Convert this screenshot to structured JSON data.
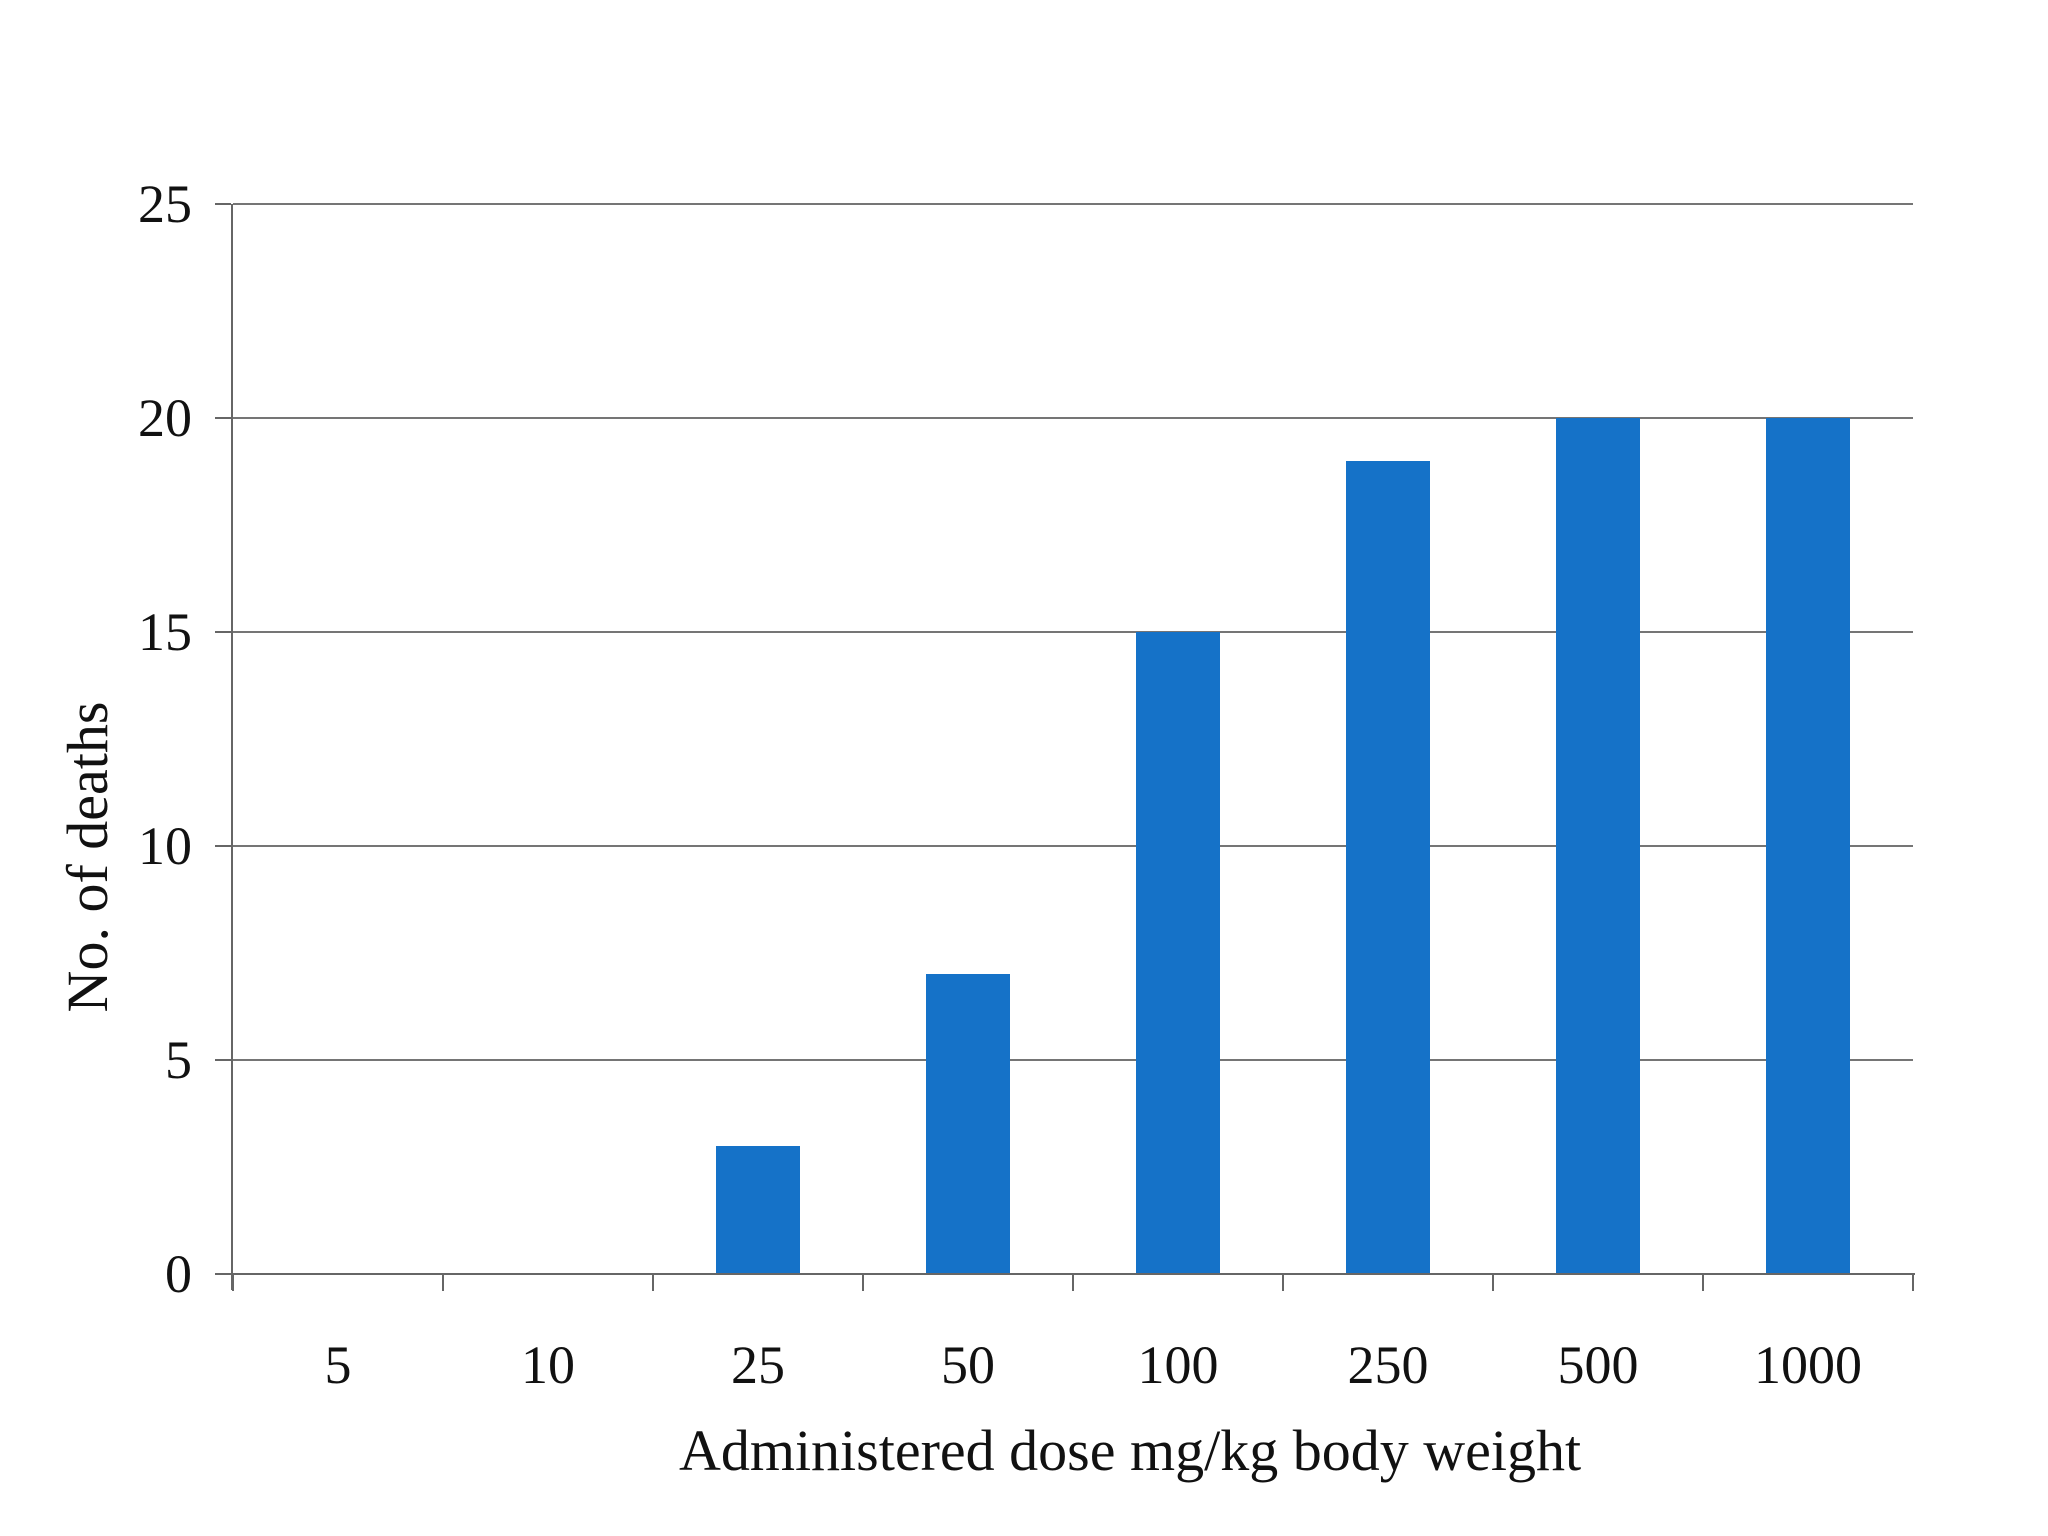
{
  "chart_data": {
    "type": "bar",
    "title": "",
    "xlabel": "Administered dose mg/kg body weight",
    "ylabel": "No. of deaths",
    "categories": [
      "5",
      "10",
      "25",
      "50",
      "100",
      "250",
      "500",
      "1000"
    ],
    "values": [
      0,
      0,
      3,
      7,
      15,
      19,
      20,
      20
    ],
    "ylim": [
      0,
      25
    ],
    "yticks": [
      0,
      5,
      10,
      15,
      20,
      25
    ],
    "grid": true,
    "legend_position": "none",
    "bar_color": "#1572C8",
    "gridline_color": "#757575",
    "axis_color": "#666666",
    "text_color": "#111111",
    "background_color": "#FFFFFF"
  }
}
